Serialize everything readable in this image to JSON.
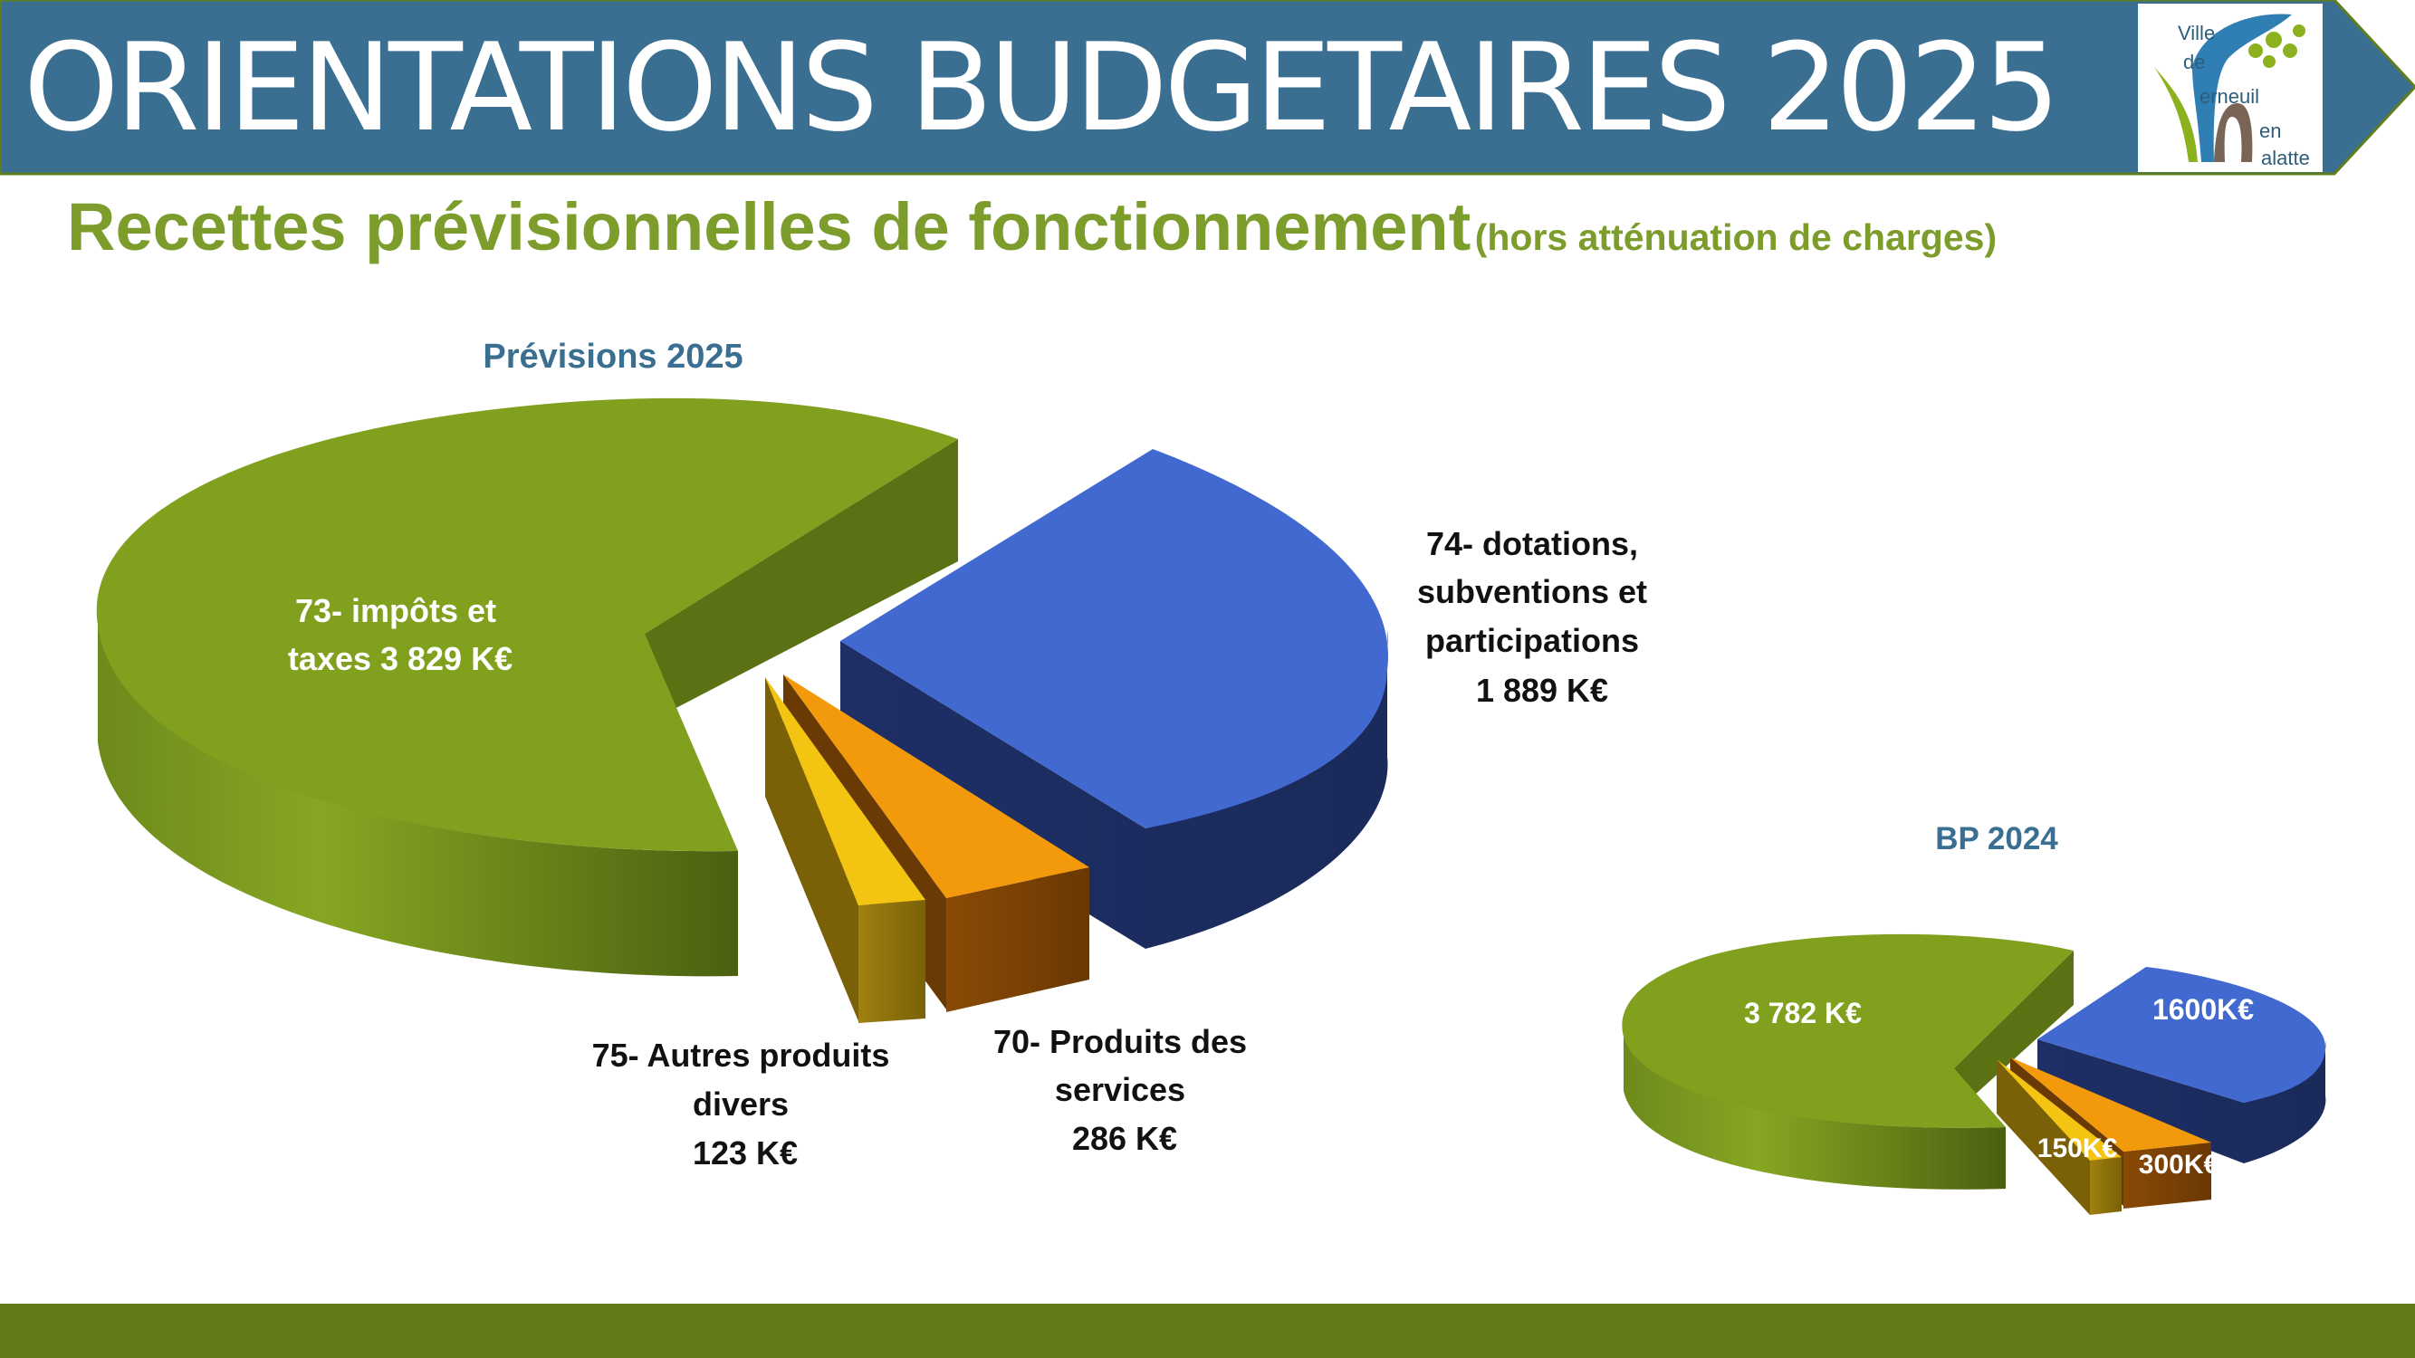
{
  "header": {
    "title": "ORIENTATIONS BUDGETAIRES 2025",
    "logo_lines": [
      "Ville",
      "de",
      "erneuil",
      "en",
      "alatte"
    ]
  },
  "subtitle": {
    "main": "Recettes prévisionnelles de fonctionnement",
    "note": "(hors atténuation de charges)"
  },
  "colors": {
    "header_bg": "#3a6f92",
    "accent_green": "#7c9c2c",
    "series_title": "#3a6f92",
    "bottom_band": "#637b1b",
    "slice_impots": "#80a01e",
    "slice_dotations": "#4169d0",
    "slice_services": "#f39a0c",
    "slice_autres": "#f3c412"
  },
  "chart_data": [
    {
      "type": "pie",
      "title": "Prévisions 2025",
      "unit": "K€",
      "slices": [
        {
          "category": "73- impôts et taxes",
          "value": 3829,
          "color": "#80a01e",
          "label_lines": [
            "73- impôts et",
            "taxes 3 829 K€"
          ]
        },
        {
          "category": "74- dotations, subventions et participations",
          "value": 1889,
          "color": "#4169d0",
          "label_lines": [
            "74- dotations,",
            "subventions et",
            "participations",
            "1 889 K€"
          ]
        },
        {
          "category": "70- Produits des services",
          "value": 286,
          "color": "#f39a0c",
          "label_lines": [
            "70- Produits des",
            "services",
            "286 K€"
          ]
        },
        {
          "category": "75- Autres produits divers",
          "value": 123,
          "color": "#f3c412",
          "label_lines": [
            "75- Autres produits",
            "divers",
            "123 K€"
          ]
        }
      ]
    },
    {
      "type": "pie",
      "title": "BP 2024",
      "unit": "K€",
      "slices": [
        {
          "category": "73- impôts et taxes",
          "value": 3782,
          "color": "#80a01e",
          "label_lines": [
            "3 782 K€"
          ]
        },
        {
          "category": "74- dotations, subventions et participations",
          "value": 1600,
          "color": "#4169d0",
          "label_lines": [
            "1600K€"
          ]
        },
        {
          "category": "70- Produits des services",
          "value": 300,
          "color": "#f39a0c",
          "label_lines": [
            "300K€"
          ]
        },
        {
          "category": "75- Autres produits divers",
          "value": 150,
          "color": "#f3c412",
          "label_lines": [
            "150K€"
          ]
        }
      ]
    }
  ]
}
